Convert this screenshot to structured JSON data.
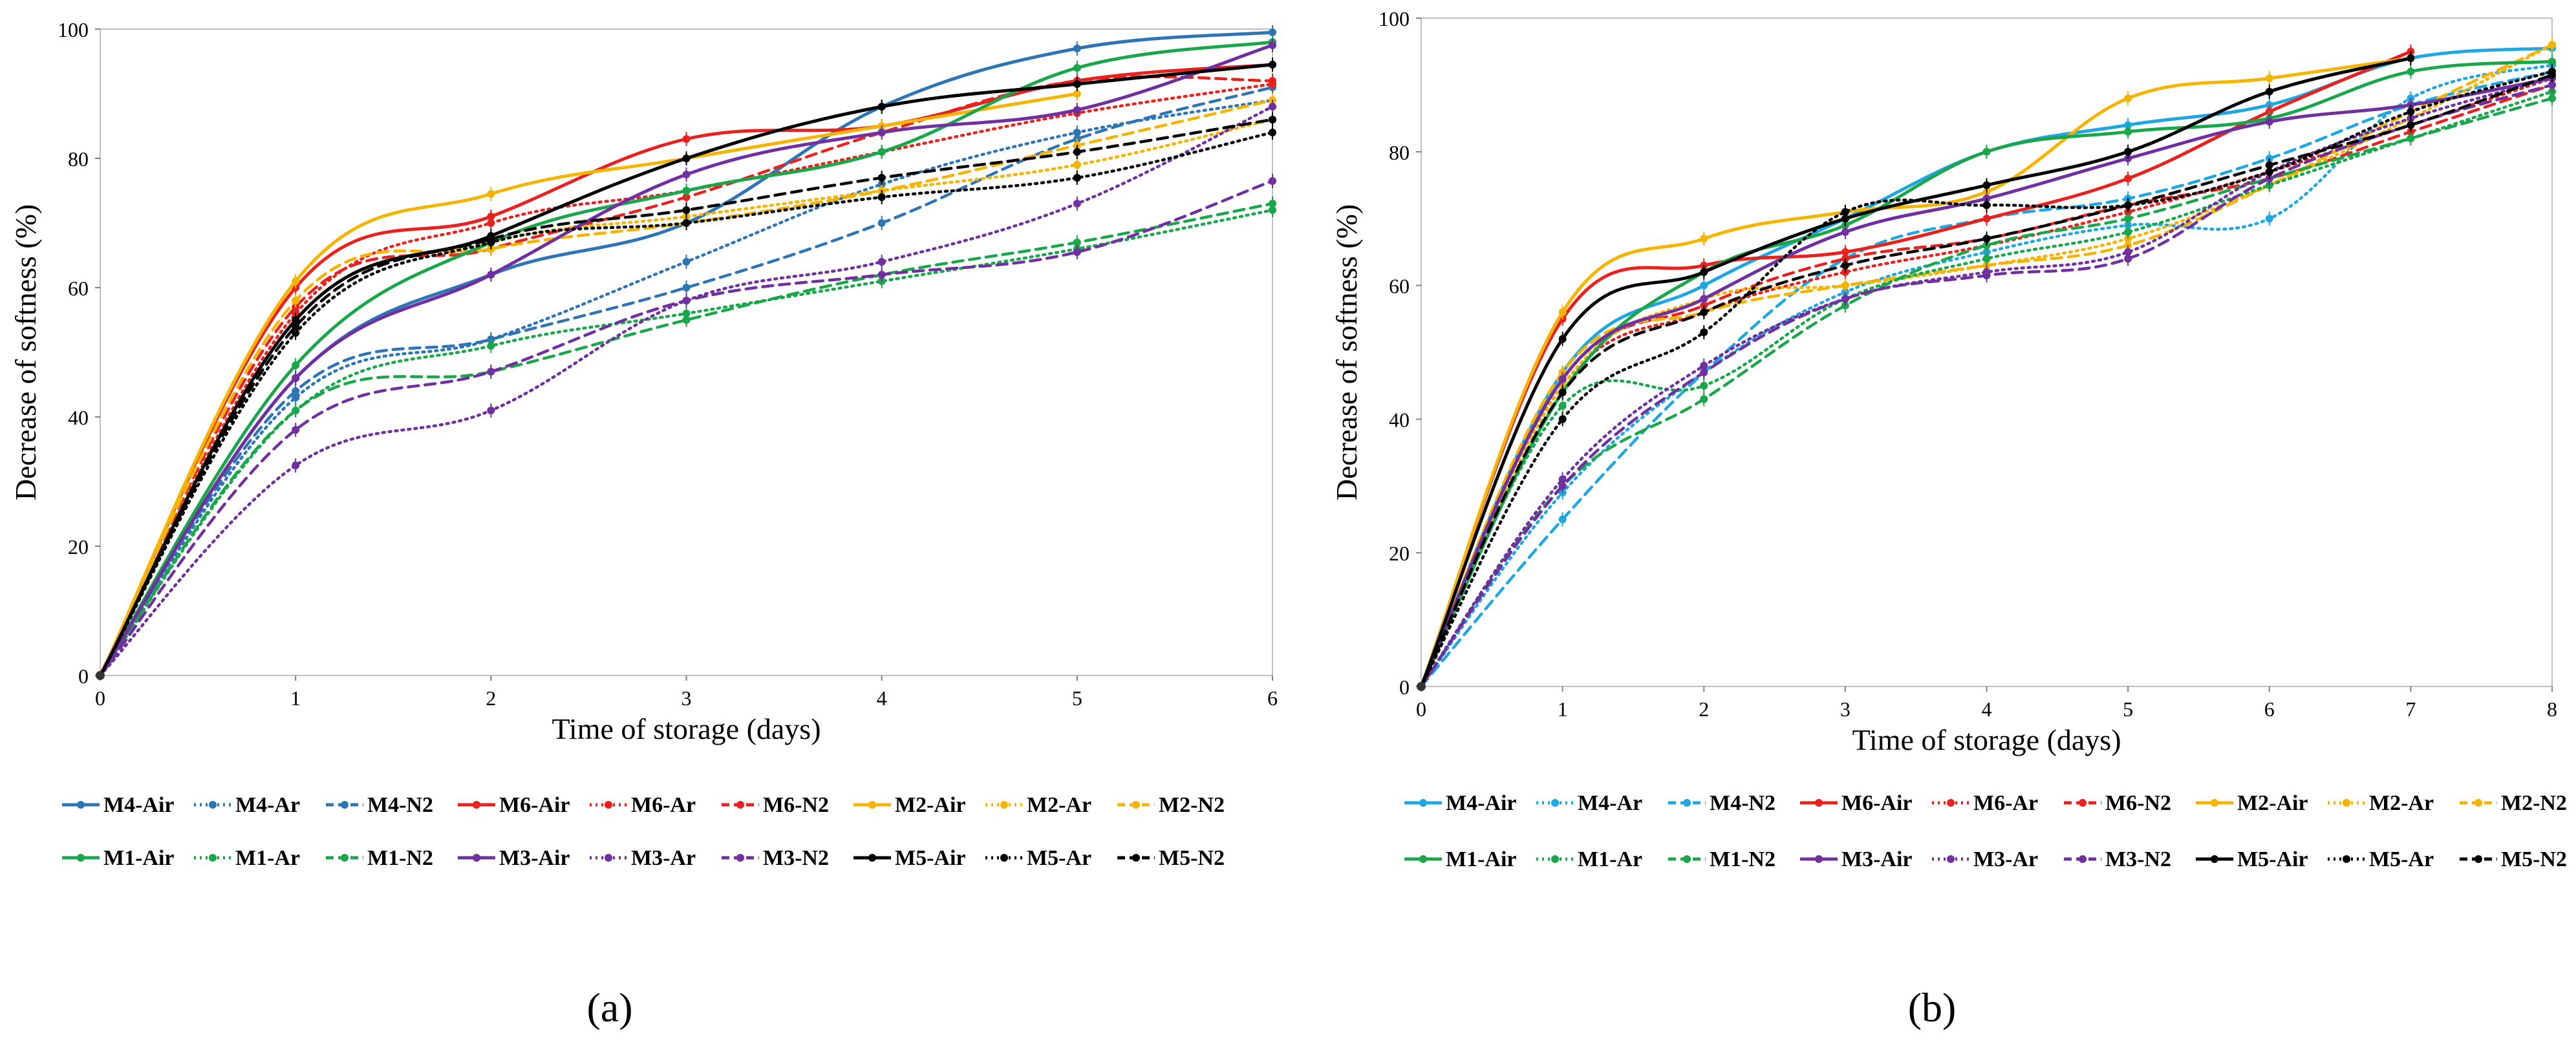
{
  "chart_data": [
    {
      "panel_label": "(a)",
      "type": "line",
      "xlabel": "Time of storage (days)",
      "ylabel": "Decrease of softness (%)",
      "xlim": [
        0,
        6
      ],
      "ylim": [
        0,
        100
      ],
      "xticks": [
        0,
        1,
        2,
        3,
        4,
        5,
        6
      ],
      "yticks": [
        0,
        20,
        40,
        60,
        80,
        100
      ],
      "grid": false,
      "legend_position": "bottom",
      "series": [
        {
          "name": "M4-Air",
          "color": "#2E75B6",
          "style": "solid",
          "x": [
            0,
            1,
            2,
            3,
            4,
            5,
            6
          ],
          "y": [
            0,
            46,
            62,
            70,
            88,
            97,
            99.5
          ]
        },
        {
          "name": "M4-Ar",
          "color": "#2E75B6",
          "style": "dotted",
          "x": [
            0,
            1,
            2,
            3,
            4,
            5,
            6
          ],
          "y": [
            0,
            43,
            52,
            64,
            76,
            84,
            89
          ]
        },
        {
          "name": "M4-N2",
          "color": "#2E75B6",
          "style": "dashed",
          "x": [
            0,
            1,
            2,
            3,
            4,
            5,
            6
          ],
          "y": [
            0,
            44,
            52,
            60,
            70,
            83,
            91
          ]
        },
        {
          "name": "M6-Air",
          "color": "#E8231F",
          "style": "solid",
          "x": [
            0,
            1,
            2,
            3,
            4,
            5,
            6
          ],
          "y": [
            0,
            60,
            71,
            83,
            85,
            92,
            94.5
          ]
        },
        {
          "name": "M6-Ar",
          "color": "#E8231F",
          "style": "dotted",
          "x": [
            0,
            1,
            2,
            3,
            4,
            5,
            6
          ],
          "y": [
            0,
            56,
            70,
            75,
            81,
            87,
            91.5
          ]
        },
        {
          "name": "M6-N2",
          "color": "#E8231F",
          "style": "dashed",
          "x": [
            0,
            1,
            2,
            3,
            4,
            5,
            6
          ],
          "y": [
            0,
            57,
            66,
            74,
            84,
            92,
            92
          ]
        },
        {
          "name": "M2-Air",
          "color": "#F5B400",
          "style": "solid",
          "x": [
            0,
            1,
            2,
            3,
            4,
            5
          ],
          "y": [
            0,
            61,
            74.5,
            80,
            85,
            90
          ]
        },
        {
          "name": "M2-Ar",
          "color": "#F5B400",
          "style": "dotted",
          "x": [
            0,
            1,
            2,
            3,
            4,
            5,
            6
          ],
          "y": [
            0,
            55,
            67,
            71,
            75,
            79,
            86
          ]
        },
        {
          "name": "M2-N2",
          "color": "#F5B400",
          "style": "dashed",
          "x": [
            0,
            1,
            2,
            3,
            4,
            5,
            6
          ],
          "y": [
            0,
            58,
            66,
            70,
            75,
            82,
            89
          ]
        },
        {
          "name": "M1-Air",
          "color": "#1AA64A",
          "style": "solid",
          "x": [
            0,
            1,
            2,
            3,
            4,
            5,
            6
          ],
          "y": [
            0,
            48,
            67,
            75,
            81,
            94,
            98
          ]
        },
        {
          "name": "M1-Ar",
          "color": "#1AA64A",
          "style": "dotted",
          "x": [
            0,
            1,
            2,
            3,
            4,
            5,
            6
          ],
          "y": [
            0,
            41,
            51,
            56,
            61,
            66,
            72
          ]
        },
        {
          "name": "M1-N2",
          "color": "#1AA64A",
          "style": "dashed",
          "x": [
            0,
            1,
            2,
            3,
            4,
            5,
            6
          ],
          "y": [
            0,
            41,
            47,
            55,
            62,
            67,
            73
          ]
        },
        {
          "name": "M3-Air",
          "color": "#7030A0",
          "style": "solid",
          "x": [
            0,
            1,
            2,
            3,
            4,
            5,
            6
          ],
          "y": [
            0,
            46,
            62,
            77.5,
            84,
            87.5,
            97.5
          ]
        },
        {
          "name": "M3-Ar",
          "color": "#7030A0",
          "style": "dotted",
          "x": [
            0,
            1,
            2,
            3,
            4,
            5,
            6
          ],
          "y": [
            0,
            32.5,
            41,
            58,
            64,
            73,
            88
          ]
        },
        {
          "name": "M3-N2",
          "color": "#7030A0",
          "style": "dashed",
          "x": [
            0,
            1,
            2,
            3,
            4,
            5,
            6
          ],
          "y": [
            0,
            38,
            47,
            58,
            62,
            65.5,
            76.5
          ]
        },
        {
          "name": "M5-Air",
          "color": "#000000",
          "style": "solid",
          "x": [
            0,
            1,
            2,
            3,
            4,
            5,
            6
          ],
          "y": [
            0,
            55,
            68,
            80,
            88,
            91.5,
            94.5
          ]
        },
        {
          "name": "M5-Ar",
          "color": "#000000",
          "style": "dotted",
          "x": [
            0,
            1,
            2,
            3,
            4,
            5,
            6
          ],
          "y": [
            0,
            53,
            67,
            70,
            74,
            77,
            84
          ]
        },
        {
          "name": "M5-N2",
          "color": "#000000",
          "style": "dashed",
          "x": [
            0,
            1,
            2,
            3,
            4,
            5,
            6
          ],
          "y": [
            0,
            54,
            67.5,
            72,
            77,
            81,
            86
          ]
        }
      ]
    },
    {
      "panel_label": "(b)",
      "type": "line",
      "xlabel": "Time of storage (days)",
      "ylabel": "Decrease of softness (%)",
      "xlim": [
        0,
        8
      ],
      "ylim": [
        0,
        100
      ],
      "xticks": [
        0,
        1,
        2,
        3,
        4,
        5,
        6,
        7,
        8
      ],
      "yticks": [
        0,
        20,
        40,
        60,
        80,
        100
      ],
      "grid": false,
      "legend_position": "bottom",
      "series": [
        {
          "name": "M4-Air",
          "color": "#1EA7E1",
          "style": "solid",
          "x": [
            0,
            1,
            2,
            3,
            4,
            5,
            6,
            7,
            8
          ],
          "y": [
            0,
            47,
            60,
            70,
            80,
            84,
            87,
            94,
            95.5
          ]
        },
        {
          "name": "M4-Ar",
          "color": "#1EA7E1",
          "style": "dotted",
          "x": [
            0,
            1,
            2,
            3,
            4,
            5,
            6,
            7,
            8
          ],
          "y": [
            0,
            29,
            47,
            59,
            65,
            69,
            70,
            88,
            93
          ]
        },
        {
          "name": "M4-N2",
          "color": "#1EA7E1",
          "style": "dashed",
          "x": [
            0,
            1,
            2,
            3,
            4,
            5,
            6,
            7,
            8
          ],
          "y": [
            0,
            25,
            47,
            64,
            70,
            73,
            79,
            87,
            92
          ]
        },
        {
          "name": "M6-Air",
          "color": "#E8231F",
          "style": "solid",
          "x": [
            0,
            1,
            2,
            3,
            4,
            5,
            6,
            7
          ],
          "y": [
            0,
            55,
            63,
            65,
            70,
            76,
            86,
            95
          ]
        },
        {
          "name": "M6-Ar",
          "color": "#E8231F",
          "style": "dotted",
          "x": [
            0,
            1,
            2,
            3,
            4,
            5,
            6,
            7,
            8
          ],
          "y": [
            0,
            45,
            56,
            62,
            66,
            71,
            77,
            84,
            91
          ]
        },
        {
          "name": "M6-N2",
          "color": "#E8231F",
          "style": "dashed",
          "x": [
            0,
            1,
            2,
            3,
            4,
            5,
            6,
            7,
            8
          ],
          "y": [
            0,
            46,
            57,
            64,
            67,
            72,
            76,
            83,
            90
          ]
        },
        {
          "name": "M2-Air",
          "color": "#F5B400",
          "style": "solid",
          "x": [
            0,
            1,
            2,
            3,
            4,
            5,
            6,
            7
          ],
          "y": [
            0,
            56,
            67,
            71,
            74,
            88,
            91,
            94
          ]
        },
        {
          "name": "M2-Ar",
          "color": "#F5B400",
          "style": "dotted",
          "x": [
            0,
            1,
            2,
            3,
            4,
            5,
            6,
            7,
            8
          ],
          "y": [
            0,
            45,
            58,
            60,
            63,
            67,
            75,
            85,
            96
          ]
        },
        {
          "name": "M2-N2",
          "color": "#F5B400",
          "style": "dashed",
          "x": [
            0,
            1,
            2,
            3,
            4,
            5,
            6,
            7,
            8
          ],
          "y": [
            0,
            47,
            56,
            60,
            63,
            66,
            75,
            86,
            96
          ]
        },
        {
          "name": "M1-Air",
          "color": "#1AA64A",
          "style": "solid",
          "x": [
            0,
            1,
            2,
            3,
            4,
            5,
            6,
            7,
            8
          ],
          "y": [
            0,
            44,
            62,
            69,
            80,
            83,
            85,
            92,
            93.5
          ]
        },
        {
          "name": "M1-Ar",
          "color": "#1AA64A",
          "style": "dotted",
          "x": [
            0,
            1,
            2,
            3,
            4,
            5,
            6,
            7,
            8
          ],
          "y": [
            0,
            42,
            45,
            58,
            64,
            68,
            75,
            82,
            89
          ]
        },
        {
          "name": "M1-N2",
          "color": "#1AA64A",
          "style": "dashed",
          "x": [
            0,
            1,
            2,
            3,
            4,
            5,
            6,
            7,
            8
          ],
          "y": [
            0,
            30,
            43,
            57,
            66,
            70,
            76,
            82,
            88
          ]
        },
        {
          "name": "M3-Air",
          "color": "#7030A0",
          "style": "solid",
          "x": [
            0,
            1,
            2,
            3,
            4,
            5,
            6,
            7,
            8
          ],
          "y": [
            0,
            46,
            58,
            68,
            73,
            79,
            84.5,
            87,
            91
          ]
        },
        {
          "name": "M3-Ar",
          "color": "#7030A0",
          "style": "dotted",
          "x": [
            0,
            1,
            2,
            3,
            4,
            5,
            6,
            7,
            8
          ],
          "y": [
            0,
            31,
            48,
            58,
            62,
            65,
            77,
            85,
            91
          ]
        },
        {
          "name": "M3-N2",
          "color": "#7030A0",
          "style": "dashed",
          "x": [
            0,
            1,
            2,
            3,
            4,
            5,
            6,
            7,
            8
          ],
          "y": [
            0,
            30,
            47,
            58,
            61.5,
            64,
            76,
            84,
            90
          ]
        },
        {
          "name": "M5-Air",
          "color": "#000000",
          "style": "solid",
          "x": [
            0,
            1,
            2,
            3,
            4,
            5,
            6,
            7
          ],
          "y": [
            0,
            52,
            62,
            70,
            75,
            80,
            89,
            94
          ]
        },
        {
          "name": "M5-Ar",
          "color": "#000000",
          "style": "dotted",
          "x": [
            0,
            1,
            2,
            3,
            4,
            5,
            6,
            7,
            8
          ],
          "y": [
            0,
            40,
            53,
            71,
            72,
            72,
            77,
            86,
            92
          ]
        },
        {
          "name": "M5-N2",
          "color": "#000000",
          "style": "dashed",
          "x": [
            0,
            1,
            2,
            3,
            4,
            5,
            6,
            7,
            8
          ],
          "y": [
            0,
            44,
            56,
            63,
            67,
            72,
            78,
            84,
            91.5
          ]
        }
      ]
    }
  ]
}
